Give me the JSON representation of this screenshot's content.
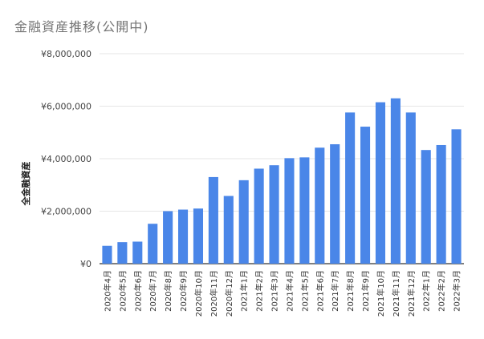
{
  "chart_data": {
    "type": "bar",
    "title": "金融資産推移(公開中)",
    "xlabel": "",
    "ylabel": "全金融資産",
    "ylim": [
      0,
      8000000
    ],
    "yticks": [
      0,
      2000000,
      4000000,
      6000000,
      8000000
    ],
    "ytick_labels": [
      "¥0",
      "¥2,000,000",
      "¥4,000,000",
      "¥6,000,000",
      "¥8,000,000"
    ],
    "grid": true,
    "legend": "none",
    "bar_color": "#4a86e8",
    "grid_color": "#e6e6e6",
    "categories": [
      "2020年4月",
      "2020年5月",
      "2020年6月",
      "2020年7月",
      "2020年8月",
      "2020年9月",
      "2020年10月",
      "2020年11月",
      "2020年12月",
      "2021年1月",
      "2021年2月",
      "2021年3月",
      "2021年4月",
      "2021年5月",
      "2021年6月",
      "2021年7月",
      "2021年8月",
      "2021年9月",
      "2021年10月",
      "2021年11月",
      "2021年12月",
      "2022年1月",
      "2022年2月",
      "2022年3月"
    ],
    "values": [
      680000,
      820000,
      840000,
      1520000,
      2000000,
      2060000,
      2100000,
      3300000,
      2580000,
      3180000,
      3620000,
      3750000,
      4020000,
      4050000,
      4420000,
      4550000,
      5760000,
      5220000,
      6150000,
      6300000,
      5760000,
      4330000,
      4520000,
      5120000
    ]
  }
}
